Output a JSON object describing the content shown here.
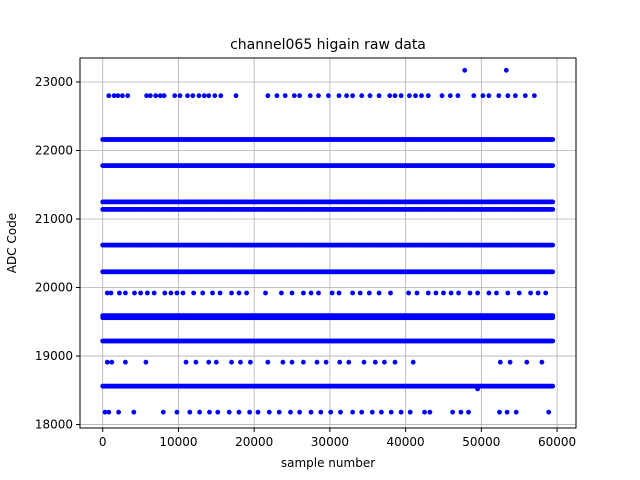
{
  "chart_data": {
    "type": "scatter",
    "title": "channel065 higain raw data",
    "xlabel": "sample number",
    "ylabel": "ADC Code",
    "xlim": [
      -3000,
      62500
    ],
    "ylim": [
      17950,
      23350
    ],
    "x_ticks": [
      0,
      10000,
      20000,
      30000,
      40000,
      50000,
      60000
    ],
    "y_ticks": [
      18000,
      19000,
      20000,
      21000,
      22000,
      23000
    ],
    "grid": true,
    "marker_color": "#0000ff",
    "dense_levels": [
      22160,
      21780,
      21250,
      21140,
      20620,
      20230,
      19590,
      19560,
      19220,
      18560
    ],
    "dense_x_range": [
      0,
      59500
    ],
    "sparse_levels": [
      {
        "y": 22800,
        "x": [
          800,
          1500,
          2000,
          2600,
          3300,
          5800,
          6300,
          7000,
          7600,
          8100,
          9500,
          10200,
          11200,
          11900,
          12700,
          13400,
          14000,
          14800,
          15600,
          17600,
          21800,
          23000,
          24100,
          25300,
          26000,
          27400,
          28500,
          29800,
          31200,
          32200,
          33000,
          34200,
          35300,
          36500,
          37900,
          38600,
          39400,
          40500,
          41300,
          42100,
          43000,
          44800,
          45900,
          46900,
          49000,
          50200,
          51000,
          52300,
          53500,
          54500,
          55800,
          57000
        ]
      },
      {
        "y": 23170,
        "x": [
          47800,
          53300
        ]
      },
      {
        "y": 19920,
        "x": [
          600,
          1100,
          2200,
          3000,
          4200,
          5000,
          5900,
          6800,
          8200,
          9000,
          9800,
          10600,
          12000,
          13200,
          14500,
          15500,
          17000,
          18000,
          19000,
          21500,
          23600,
          25000,
          26500,
          27500,
          28500,
          30300,
          31200,
          33000,
          34000,
          35200,
          36500,
          38000,
          40400,
          41500,
          43000,
          44000,
          45000,
          46000,
          47000,
          48500,
          49500,
          51000,
          52000,
          53500,
          55000,
          56500,
          57500,
          58500
        ]
      },
      {
        "y": 18910,
        "x": [
          600,
          1200,
          3000,
          5700,
          11000,
          12300,
          14000,
          15000,
          17000,
          18200,
          19500,
          21800,
          23800,
          25000,
          26500,
          28300,
          29500,
          31300,
          32500,
          34500,
          36000,
          37200,
          38600,
          41000,
          52500,
          53800,
          56000,
          58000
        ]
      },
      {
        "y": 18180,
        "x": [
          300,
          800,
          2100,
          4100,
          8000,
          9800,
          11500,
          12800,
          14100,
          15200,
          16700,
          18000,
          19400,
          20500,
          22000,
          23300,
          24800,
          26000,
          27500,
          28800,
          30100,
          31400,
          33000,
          34200,
          35600,
          36800,
          38100,
          39400,
          40600,
          42500,
          43200,
          46200,
          47300,
          48300,
          52400,
          53400,
          54600,
          58900
        ]
      },
      {
        "y": 18520,
        "x": [
          49500
        ]
      }
    ]
  }
}
